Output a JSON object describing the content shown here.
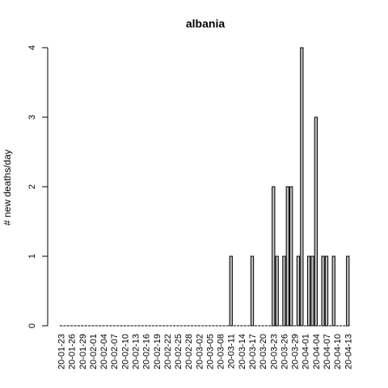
{
  "chart_data": {
    "type": "bar",
    "title": "albania",
    "xlabel": "",
    "ylabel": "# new deaths/day",
    "ylim": [
      0,
      4
    ],
    "yticks": [
      "0",
      "1",
      "2",
      "3",
      "4"
    ],
    "x_tick_labels": [
      "20-01-23",
      "20-01-26",
      "20-01-29",
      "20-02-01",
      "20-02-04",
      "20-02-07",
      "20-02-10",
      "20-02-13",
      "20-02-16",
      "20-02-19",
      "20-02-22",
      "20-02-25",
      "20-02-28",
      "20-03-02",
      "20-03-05",
      "20-03-08",
      "20-03-11",
      "20-03-14",
      "20-03-17",
      "20-03-20",
      "20-03-23",
      "20-03-26",
      "20-03-29",
      "20-04-01",
      "20-04-04",
      "20-04-07",
      "20-04-10",
      "20-04-13"
    ],
    "series": [
      {
        "x": [
          "2020-01-23",
          "2020-01-24",
          "2020-01-25",
          "2020-01-26",
          "2020-01-27",
          "2020-01-28",
          "2020-01-29",
          "2020-01-30",
          "2020-01-31",
          "2020-02-01",
          "2020-02-02",
          "2020-02-03",
          "2020-02-04",
          "2020-02-05",
          "2020-02-06",
          "2020-02-07",
          "2020-02-08",
          "2020-02-09",
          "2020-02-10",
          "2020-02-11",
          "2020-02-12",
          "2020-02-13",
          "2020-02-14",
          "2020-02-15",
          "2020-02-16",
          "2020-02-17",
          "2020-02-18",
          "2020-02-19",
          "2020-02-20",
          "2020-02-21",
          "2020-02-22",
          "2020-02-23",
          "2020-02-24",
          "2020-02-25",
          "2020-02-26",
          "2020-02-27",
          "2020-02-28",
          "2020-02-29",
          "2020-03-01",
          "2020-03-02",
          "2020-03-03",
          "2020-03-04",
          "2020-03-05",
          "2020-03-06",
          "2020-03-07",
          "2020-03-08",
          "2020-03-09",
          "2020-03-10",
          "2020-03-11",
          "2020-03-12",
          "2020-03-13",
          "2020-03-14",
          "2020-03-15",
          "2020-03-16",
          "2020-03-17",
          "2020-03-18",
          "2020-03-19",
          "2020-03-20",
          "2020-03-21",
          "2020-03-22",
          "2020-03-23",
          "2020-03-24",
          "2020-03-25",
          "2020-03-26",
          "2020-03-27",
          "2020-03-28",
          "2020-03-29",
          "2020-03-30",
          "2020-03-31",
          "2020-04-01",
          "2020-04-02",
          "2020-04-03",
          "2020-04-04",
          "2020-04-05",
          "2020-04-06",
          "2020-04-07",
          "2020-04-08",
          "2020-04-09",
          "2020-04-10",
          "2020-04-11",
          "2020-04-12",
          "2020-04-13"
        ],
        "values": [
          0,
          0,
          0,
          0,
          0,
          0,
          0,
          0,
          0,
          0,
          0,
          0,
          0,
          0,
          0,
          0,
          0,
          0,
          0,
          0,
          0,
          0,
          0,
          0,
          0,
          0,
          0,
          0,
          0,
          0,
          0,
          0,
          0,
          0,
          0,
          0,
          0,
          0,
          0,
          0,
          0,
          0,
          0,
          0,
          0,
          0,
          0,
          0,
          1,
          0,
          0,
          0,
          0,
          0,
          1,
          0,
          0,
          0,
          0,
          0,
          2,
          1,
          0,
          1,
          2,
          2,
          0,
          1,
          4,
          0,
          1,
          1,
          3,
          0,
          1,
          1,
          0,
          1,
          0,
          0,
          0,
          1
        ]
      }
    ]
  }
}
